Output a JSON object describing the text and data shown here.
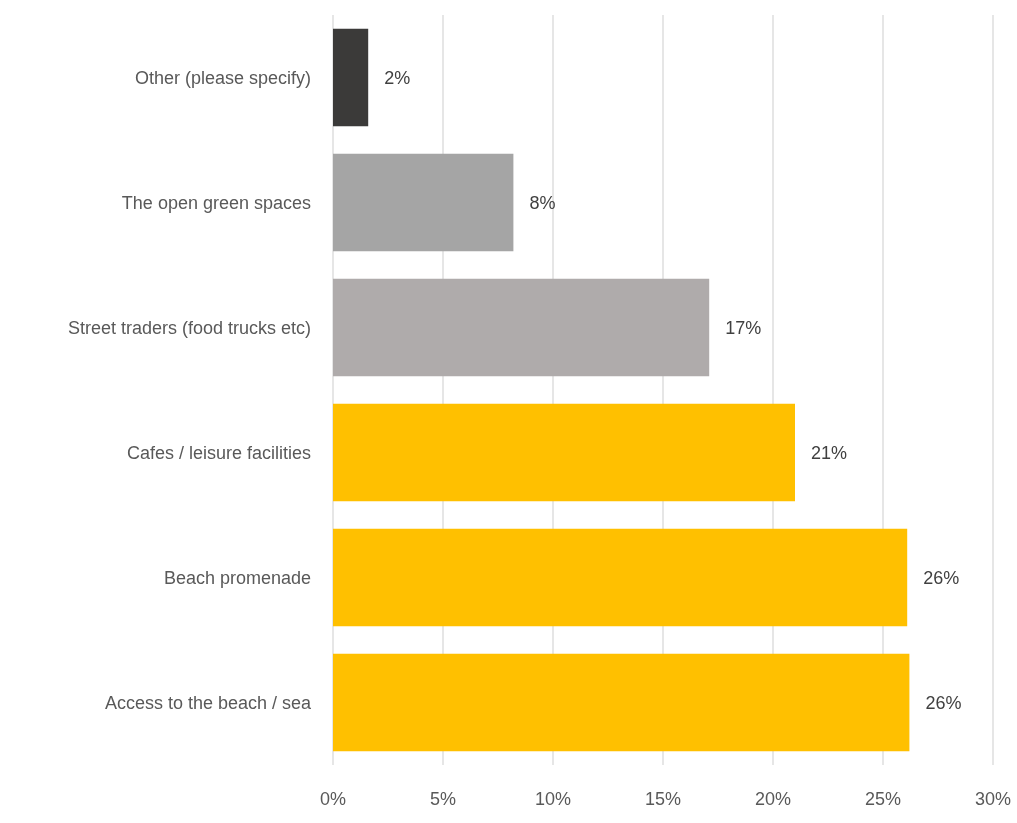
{
  "chart_data": {
    "type": "bar",
    "orientation": "horizontal",
    "categories": [
      "Other (please specify)",
      "The open green spaces",
      "Street traders (food trucks etc)",
      "Cafes / leisure facilities",
      "Beach promenade",
      "Access to the beach / sea"
    ],
    "values": [
      1.6,
      8.2,
      17.1,
      21.0,
      26.1,
      26.2
    ],
    "colors": [
      "#3b3a39",
      "#a5a5a5",
      "#afabab",
      "#ffc000",
      "#ffc000",
      "#ffc000"
    ],
    "value_labels": [
      "2%",
      "8%",
      "17%",
      "21%",
      "26%",
      "26%"
    ],
    "xlim": [
      0,
      30
    ],
    "xticks": [
      {
        "value": 0,
        "label": "0%"
      },
      {
        "value": 5,
        "label": "5%"
      },
      {
        "value": 10,
        "label": "10%"
      },
      {
        "value": 15,
        "label": "15%"
      },
      {
        "value": 20,
        "label": "20%"
      },
      {
        "value": 25,
        "label": "25%"
      },
      {
        "value": 30,
        "label": "30%"
      }
    ],
    "grid": "x"
  }
}
